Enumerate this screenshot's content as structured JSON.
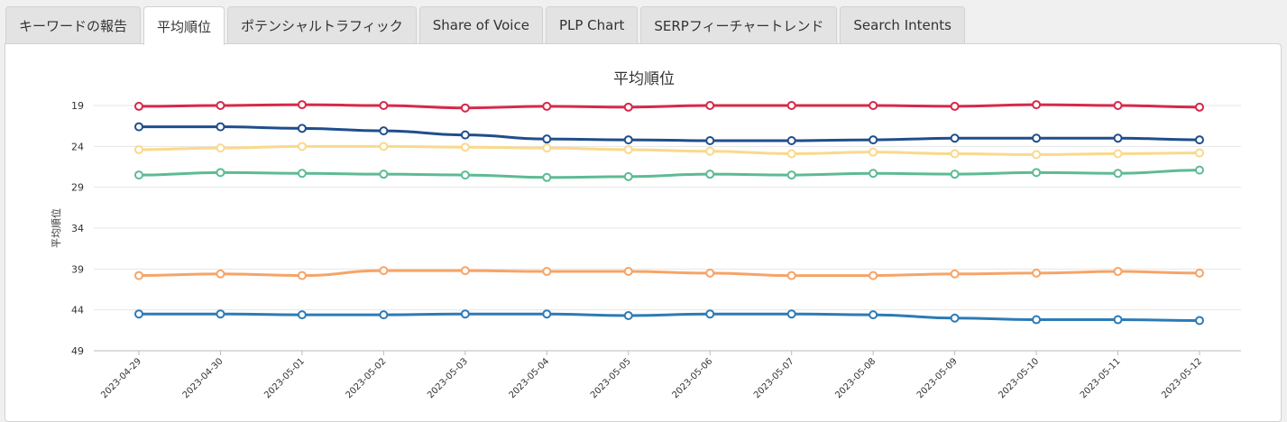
{
  "tabs": [
    {
      "label": "キーワードの報告",
      "active": false
    },
    {
      "label": "平均順位",
      "active": true
    },
    {
      "label": "ポテンシャルトラフィック",
      "active": false
    },
    {
      "label": "Share of Voice",
      "active": false
    },
    {
      "label": "PLP Chart",
      "active": false
    },
    {
      "label": "SERPフィーチャートレンド",
      "active": false
    },
    {
      "label": "Search Intents",
      "active": false
    }
  ],
  "chart_data": {
    "type": "line",
    "title": "平均順位",
    "ylabel": "平均順位",
    "xlabel": "",
    "yaxis_reversed": true,
    "ylim": [
      19,
      49
    ],
    "yticks": [
      19,
      24,
      29,
      34,
      39,
      44,
      49
    ],
    "grid": true,
    "legend": "none",
    "x": [
      "2023-04-29",
      "2023-04-30",
      "2023-05-01",
      "2023-05-02",
      "2023-05-03",
      "2023-05-04",
      "2023-05-05",
      "2023-05-06",
      "2023-05-07",
      "2023-05-08",
      "2023-05-09",
      "2023-05-10",
      "2023-05-11",
      "2023-05-12"
    ],
    "series": [
      {
        "color": "#d7284a",
        "values": [
          19.1,
          19.0,
          18.9,
          19.0,
          19.3,
          19.1,
          19.2,
          19.0,
          19.0,
          19.0,
          19.1,
          18.9,
          19.0,
          19.2
        ]
      },
      {
        "color": "#1f4e8c",
        "values": [
          21.6,
          21.6,
          21.8,
          22.1,
          22.6,
          23.1,
          23.2,
          23.3,
          23.3,
          23.2,
          23.0,
          23.0,
          23.0,
          23.2
        ]
      },
      {
        "color": "#f9d98c",
        "values": [
          24.4,
          24.2,
          24.0,
          24.0,
          24.1,
          24.2,
          24.4,
          24.6,
          24.9,
          24.7,
          24.9,
          25.0,
          24.9,
          24.8
        ]
      },
      {
        "color": "#5dbb94",
        "values": [
          27.5,
          27.2,
          27.3,
          27.4,
          27.5,
          27.8,
          27.7,
          27.4,
          27.5,
          27.3,
          27.4,
          27.2,
          27.3,
          26.9
        ]
      },
      {
        "color": "#f6a468",
        "values": [
          39.8,
          39.6,
          39.8,
          39.2,
          39.2,
          39.3,
          39.3,
          39.5,
          39.8,
          39.8,
          39.6,
          39.5,
          39.3,
          39.5
        ]
      },
      {
        "color": "#2c7bb6",
        "values": [
          44.5,
          44.5,
          44.6,
          44.6,
          44.5,
          44.5,
          44.7,
          44.5,
          44.5,
          44.6,
          45.0,
          45.2,
          45.2,
          45.3
        ]
      }
    ]
  }
}
